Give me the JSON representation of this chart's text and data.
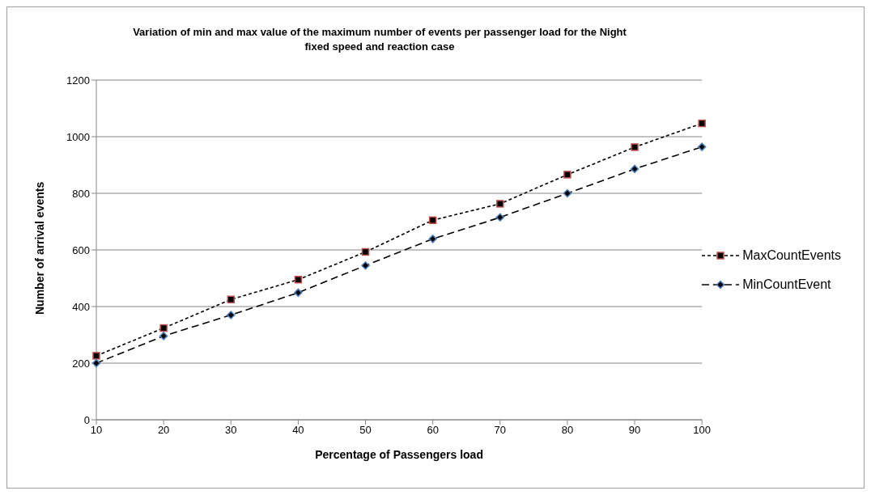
{
  "chart_data": {
    "type": "line",
    "title": "Variation of min and max value of the maximum number of  events  per passenger load for the Night fixed speed and reaction case",
    "xlabel": "Percentage of Passengers load",
    "ylabel": "Number of arrival events",
    "categories": [
      "10",
      "20",
      "30",
      "40",
      "50",
      "60",
      "70",
      "80",
      "90",
      "100"
    ],
    "series": [
      {
        "name": "MaxCountEvents",
        "color": "#c0504d",
        "marker": "square",
        "line_style": "dotted",
        "values": [
          226,
          324,
          425,
          495,
          593,
          705,
          763,
          866,
          963,
          1047
        ]
      },
      {
        "name": "MinCountEvent",
        "color": "#4f81bd",
        "marker": "diamond",
        "line_style": "dashed",
        "values": [
          200,
          296,
          370,
          449,
          545,
          639,
          715,
          800,
          886,
          964
        ]
      }
    ],
    "ylim": [
      0,
      1200
    ],
    "yticks": [
      0,
      200,
      400,
      600,
      800,
      1000,
      1200
    ],
    "grid": "y",
    "legend": "right"
  }
}
